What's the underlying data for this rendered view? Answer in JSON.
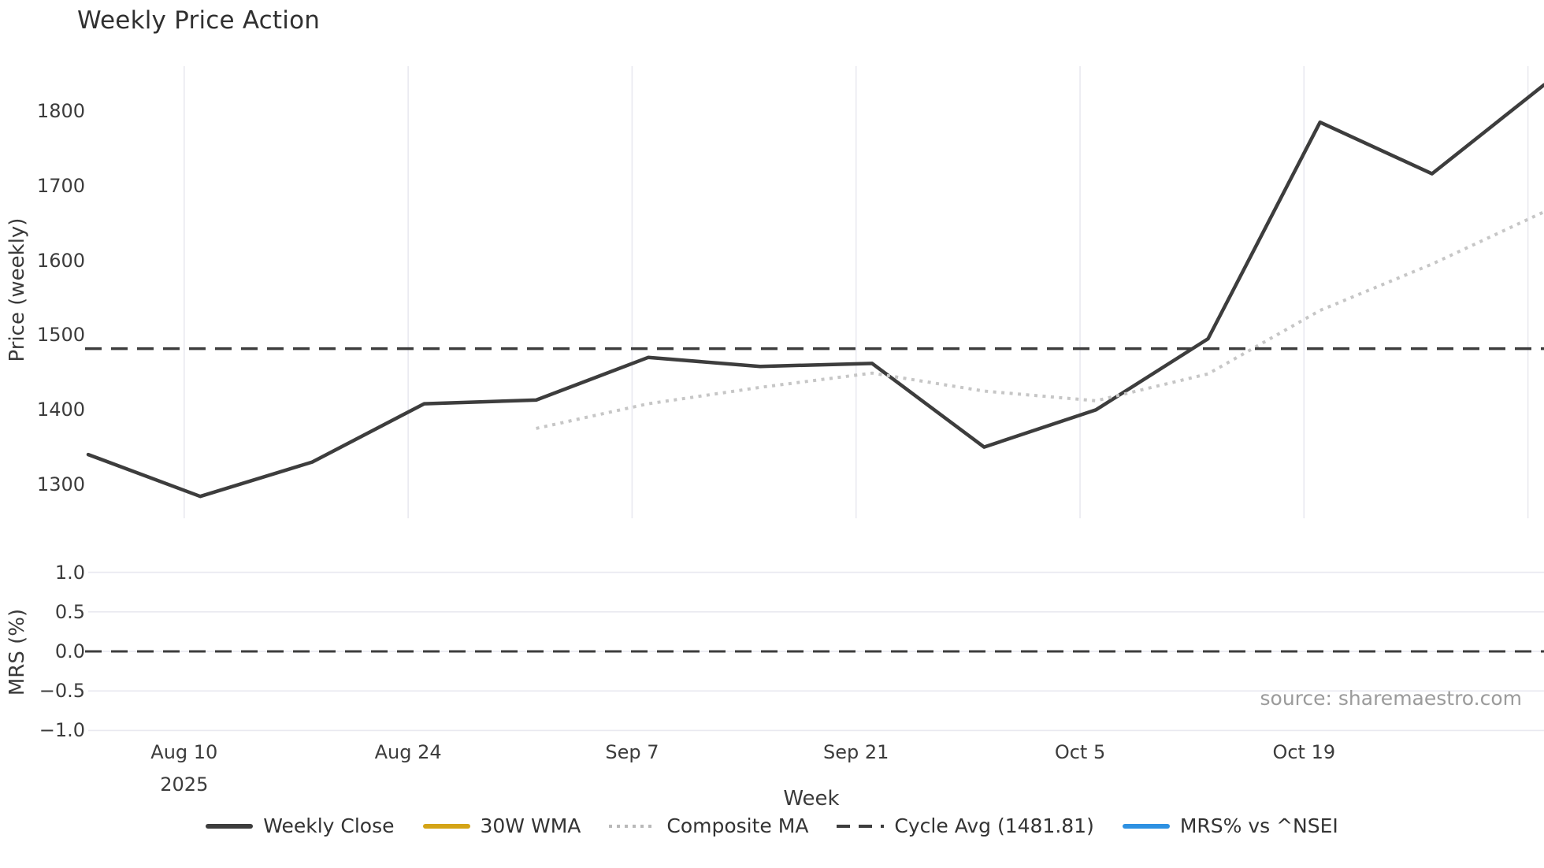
{
  "title": "Weekly Price Action",
  "source_note": "source: sharemaestro.com",
  "colors": {
    "accent_dark": "#3d3d3d",
    "grid": "#e9e9f0",
    "composite_gray": "#c6c6c6",
    "wma_gold": "#d4a417",
    "mrs_blue": "#2e91e2",
    "text": "#333333",
    "muted_text": "#9b9b9b"
  },
  "chart_data": [
    {
      "type": "line",
      "panel": "price",
      "title": "Weekly Price Action",
      "xlabel": "Week",
      "ylabel": "Price (weekly)",
      "ylim": [
        1250,
        1862
      ],
      "yticks": [
        "1800",
        "1700",
        "1600",
        "1500",
        "1400",
        "1300"
      ],
      "ytick_values": [
        1800,
        1700,
        1600,
        1500,
        1400,
        1300
      ],
      "grid": "vertical-only",
      "x_tick_labels": [
        "Aug 10",
        "Aug 24",
        "Sep 7",
        "Sep 21",
        "Oct 5",
        "Oct 19"
      ],
      "x_tick_sublabels": [
        "2025",
        "",
        "",
        "",
        "",
        ""
      ],
      "x_tick_week_positions": [
        0.857,
        2.857,
        4.857,
        6.857,
        8.857,
        10.857
      ],
      "unlabeled_gridline_week_position": 12.857,
      "series": [
        {
          "name": "Weekly Close",
          "style": "solid",
          "color": "#3d3d3d",
          "start_week": 0,
          "values": [
            1340,
            1284,
            1330,
            1408,
            1413,
            1470,
            1458,
            1462,
            1350,
            1400,
            1495,
            1785,
            1716,
            1835
          ]
        },
        {
          "name": "30W WMA",
          "style": "solid",
          "color": "#d4a417",
          "start_week": 0,
          "values": []
        },
        {
          "name": "Composite MA",
          "style": "dotted",
          "color": "#c6c6c6",
          "start_week": 4,
          "values": [
            1375,
            1408,
            1430,
            1449,
            1425,
            1412,
            1448,
            1533,
            1595,
            1665
          ]
        },
        {
          "name": "Cycle Avg",
          "style": "dashed",
          "color": "#3d3d3d",
          "constant": 1481.81
        }
      ]
    },
    {
      "type": "line",
      "panel": "mrs",
      "ylabel": "MRS (%)",
      "ylim": [
        -1.15,
        1.15
      ],
      "yticks": [
        "1.0",
        "0.5",
        "0.0",
        "−0.5",
        "−1.0"
      ],
      "ytick_values": [
        1.0,
        0.5,
        0.0,
        -0.5,
        -1.0
      ],
      "grid": "horizontal-only",
      "series": [
        {
          "name": "MRS% vs ^NSEI",
          "style": "solid",
          "color": "#2e91e2",
          "start_week": 0,
          "values": []
        },
        {
          "name": "Zero line",
          "style": "dashed",
          "color": "#3d3d3d",
          "constant": 0.0
        }
      ]
    }
  ],
  "legend": [
    {
      "label": "Weekly Close",
      "style": "solid",
      "color": "#3d3d3d"
    },
    {
      "label": "30W WMA",
      "style": "solid",
      "color": "#d4a417"
    },
    {
      "label": "Composite MA",
      "style": "dotted",
      "color": "#b9b9b9"
    },
    {
      "label": "Cycle Avg (1481.81)",
      "style": "dashed",
      "color": "#3d3d3d"
    },
    {
      "label": "MRS% vs ^NSEI",
      "style": "solid",
      "color": "#2e91e2"
    }
  ]
}
